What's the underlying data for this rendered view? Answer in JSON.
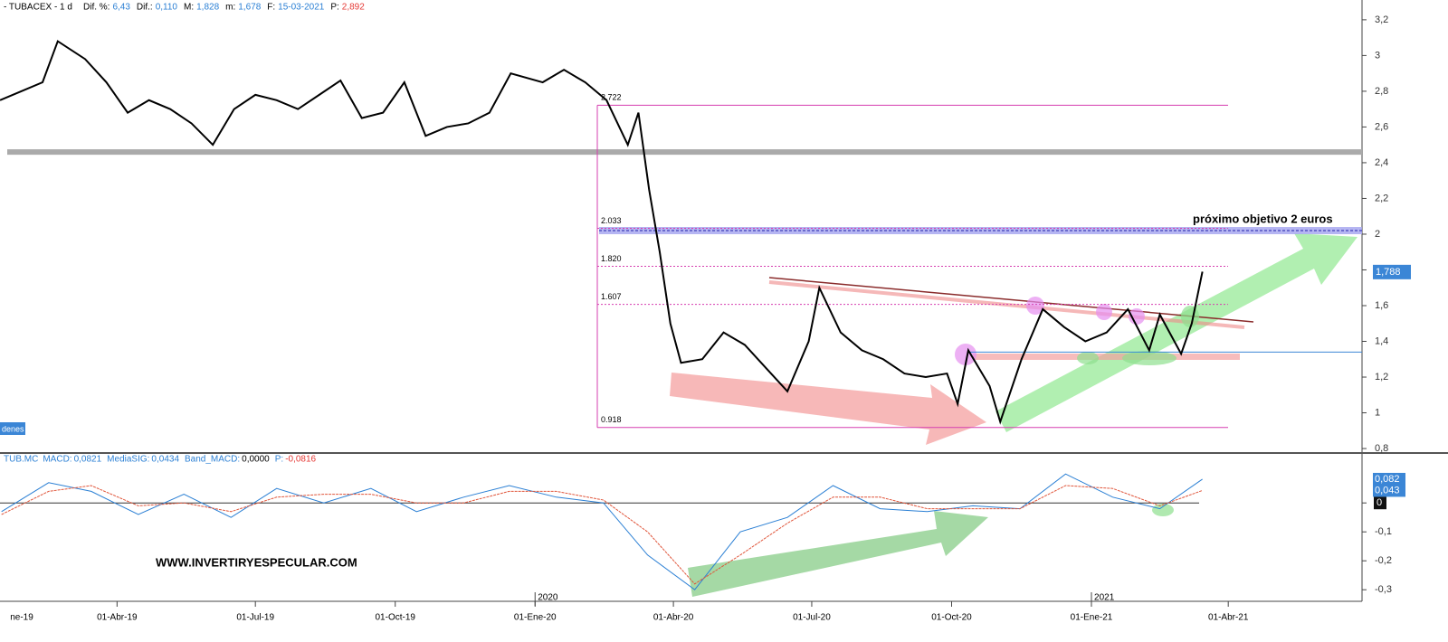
{
  "header": {
    "title": "- TUBACEX - 1 d",
    "items": [
      {
        "label": "Dif. %:",
        "value": "6,43"
      },
      {
        "label": "Dif.:",
        "value": "0,110"
      },
      {
        "label": "M:",
        "value": "1,828"
      },
      {
        "label": "m:",
        "value": "1,678"
      },
      {
        "label": "F:",
        "value": "15-03-2021"
      },
      {
        "label": "P:",
        "value": "2,892"
      }
    ]
  },
  "orders_label": "denes",
  "watermark": "WWW.INVERTIRYESPECULAR.COM",
  "chart_data": [
    {
      "type": "line",
      "xlim": [
        "2019-01-14",
        "2021-06-28"
      ],
      "ylim": [
        0.78,
        3.25
      ],
      "yticks": [
        {
          "value": 3.2,
          "label": "3,2"
        },
        3,
        {
          "value": 2.8,
          "label": "2,8"
        },
        {
          "value": 2.6,
          "label": "2,6"
        },
        {
          "value": 2.4,
          "label": "2,4"
        },
        {
          "value": 2.2,
          "label": "2,2"
        },
        2,
        {
          "value": 1.8,
          "label": "1,8"
        },
        {
          "value": 1.6,
          "label": "1,6"
        },
        {
          "value": 1.4,
          "label": "1,4"
        },
        {
          "value": 1.2,
          "label": "1,2"
        },
        1,
        {
          "value": 0.8,
          "label": "0,8"
        }
      ],
      "xticks": [
        {
          "value": "2019-01-01",
          "label": "ne-19"
        },
        {
          "value": "2019-04-01",
          "label": "01-Abr-19"
        },
        {
          "value": "2019-07-01",
          "label": "01-Jul-19"
        },
        {
          "value": "2019-10-01",
          "label": "01-Oct-19"
        },
        {
          "value": "2020-01-01",
          "label": "01-Ene-20"
        },
        {
          "value": "2020-04-01",
          "label": "01-Abr-20"
        },
        {
          "value": "2020-07-01",
          "label": "01-Jul-20"
        },
        {
          "value": "2020-10-01",
          "label": "01-Oct-20"
        },
        {
          "value": "2021-01-01",
          "label": "01-Ene-21"
        },
        {
          "value": "2021-04-01",
          "label": "01-Abr-21"
        }
      ],
      "years": [
        {
          "value": "2020-01-01",
          "label": "2020"
        },
        {
          "value": "2021-01-01",
          "label": "2021"
        }
      ],
      "series": [
        {
          "name": "TUBACEX",
          "color": "#000000",
          "x": [
            "2019-01-14",
            "2019-01-28",
            "2019-02-11",
            "2019-02-21",
            "2019-03-11",
            "2019-03-25",
            "2019-04-08",
            "2019-04-22",
            "2019-05-06",
            "2019-05-20",
            "2019-06-03",
            "2019-06-17",
            "2019-07-01",
            "2019-07-15",
            "2019-07-29",
            "2019-08-12",
            "2019-08-26",
            "2019-09-09",
            "2019-09-23",
            "2019-10-07",
            "2019-10-21",
            "2019-11-04",
            "2019-11-18",
            "2019-12-02",
            "2019-12-16",
            "2020-01-06",
            "2020-01-20",
            "2020-02-03",
            "2020-02-17",
            "2020-03-02",
            "2020-03-09",
            "2020-03-16",
            "2020-03-23",
            "2020-03-30",
            "2020-04-06",
            "2020-04-20",
            "2020-05-04",
            "2020-05-18",
            "2020-06-01",
            "2020-06-15",
            "2020-06-29",
            "2020-07-06",
            "2020-07-20",
            "2020-08-03",
            "2020-08-17",
            "2020-08-31",
            "2020-09-14",
            "2020-09-28",
            "2020-10-05",
            "2020-10-12",
            "2020-10-26",
            "2020-11-02",
            "2020-11-16",
            "2020-11-30",
            "2020-12-14",
            "2020-12-28",
            "2021-01-11",
            "2021-01-25",
            "2021-02-08",
            "2021-02-15",
            "2021-03-01",
            "2021-03-08",
            "2021-03-15"
          ],
          "values": [
            2.75,
            2.8,
            2.85,
            3.08,
            2.98,
            2.85,
            2.68,
            2.75,
            2.7,
            2.62,
            2.5,
            2.7,
            2.78,
            2.75,
            2.7,
            2.78,
            2.86,
            2.65,
            2.68,
            2.85,
            2.55,
            2.6,
            2.62,
            2.68,
            2.9,
            2.85,
            2.92,
            2.85,
            2.75,
            2.5,
            2.68,
            2.25,
            1.9,
            1.5,
            1.28,
            1.3,
            1.45,
            1.38,
            1.25,
            1.12,
            1.4,
            1.7,
            1.45,
            1.35,
            1.3,
            1.22,
            1.2,
            1.22,
            1.05,
            1.35,
            1.15,
            0.95,
            1.3,
            1.58,
            1.48,
            1.4,
            1.45,
            1.58,
            1.35,
            1.55,
            1.33,
            1.5,
            1.79
          ]
        }
      ],
      "fib_levels": [
        {
          "value": 2.722,
          "label": "2.722"
        },
        {
          "value": 2.033,
          "label": "2.033"
        },
        {
          "value": 1.82,
          "label": "1.820"
        },
        {
          "value": 1.607,
          "label": "1.607"
        },
        {
          "value": 0.918,
          "label": "0.918"
        }
      ],
      "support": 2.46,
      "target": 2.02,
      "target_annotation": "próximo objetivo 2 euros",
      "base_line": 1.34,
      "last_price": {
        "value": 1.788,
        "label": "1,788"
      }
    },
    {
      "type": "line",
      "title": "TUB.MC",
      "xlim": [
        "2019-01-14",
        "2021-06-28"
      ],
      "ylim": [
        -0.34,
        0.16
      ],
      "legend": [
        {
          "label": "MACD:",
          "value": "0,0821",
          "color": "#2a7fd4"
        },
        {
          "label": "MediaSIG:",
          "value": "0,0434",
          "color": "#2a7fd4"
        },
        {
          "label": "Band_MACD:",
          "value": "0,0000",
          "color": "#000000"
        },
        {
          "label": "P:",
          "value": "-0,0816",
          "color": "#e53935"
        }
      ],
      "yticks": [
        0,
        {
          "value": -0.1,
          "label": "-0,1"
        },
        {
          "value": -0.2,
          "label": "-0,2"
        },
        {
          "value": -0.3,
          "label": "-0,3"
        }
      ],
      "series": [
        {
          "name": "MACD",
          "color": "#2a7fd4",
          "x": [
            "2019-01-15",
            "2019-02-15",
            "2019-03-15",
            "2019-04-15",
            "2019-05-15",
            "2019-06-15",
            "2019-07-15",
            "2019-08-15",
            "2019-09-15",
            "2019-10-15",
            "2019-11-15",
            "2019-12-15",
            "2020-01-15",
            "2020-02-15",
            "2020-03-15",
            "2020-04-15",
            "2020-05-15",
            "2020-06-15",
            "2020-07-15",
            "2020-08-15",
            "2020-09-15",
            "2020-10-15",
            "2020-11-15",
            "2020-12-15",
            "2021-01-15",
            "2021-02-15",
            "2021-03-15"
          ],
          "values": [
            -0.03,
            0.07,
            0.04,
            -0.04,
            0.03,
            -0.05,
            0.05,
            0,
            0.05,
            -0.03,
            0.02,
            0.06,
            0.02,
            0,
            -0.18,
            -0.3,
            -0.1,
            -0.05,
            0.06,
            -0.02,
            -0.03,
            -0.01,
            -0.02,
            0.1,
            0.02,
            -0.02,
            0.082
          ]
        },
        {
          "name": "MediaSIG",
          "color": "#e0553a",
          "x": [
            "2019-01-15",
            "2019-02-15",
            "2019-03-15",
            "2019-04-15",
            "2019-05-15",
            "2019-06-15",
            "2019-07-15",
            "2019-08-15",
            "2019-09-15",
            "2019-10-15",
            "2019-11-15",
            "2019-12-15",
            "2020-01-15",
            "2020-02-15",
            "2020-03-15",
            "2020-04-15",
            "2020-05-15",
            "2020-06-15",
            "2020-07-15",
            "2020-08-15",
            "2020-09-15",
            "2020-10-15",
            "2020-11-15",
            "2020-12-15",
            "2021-01-15",
            "2021-02-15",
            "2021-03-15"
          ],
          "values": [
            -0.04,
            0.04,
            0.06,
            -0.01,
            0.0,
            -0.03,
            0.02,
            0.03,
            0.03,
            0.0,
            0.0,
            0.04,
            0.04,
            0.01,
            -0.1,
            -0.28,
            -0.18,
            -0.07,
            0.02,
            0.02,
            -0.02,
            -0.02,
            -0.02,
            0.06,
            0.05,
            -0.01,
            0.043
          ]
        }
      ],
      "value_badges": [
        {
          "value": 0.082,
          "label": "0,082"
        },
        {
          "value": 0.043,
          "label": "0,043"
        }
      ]
    }
  ]
}
